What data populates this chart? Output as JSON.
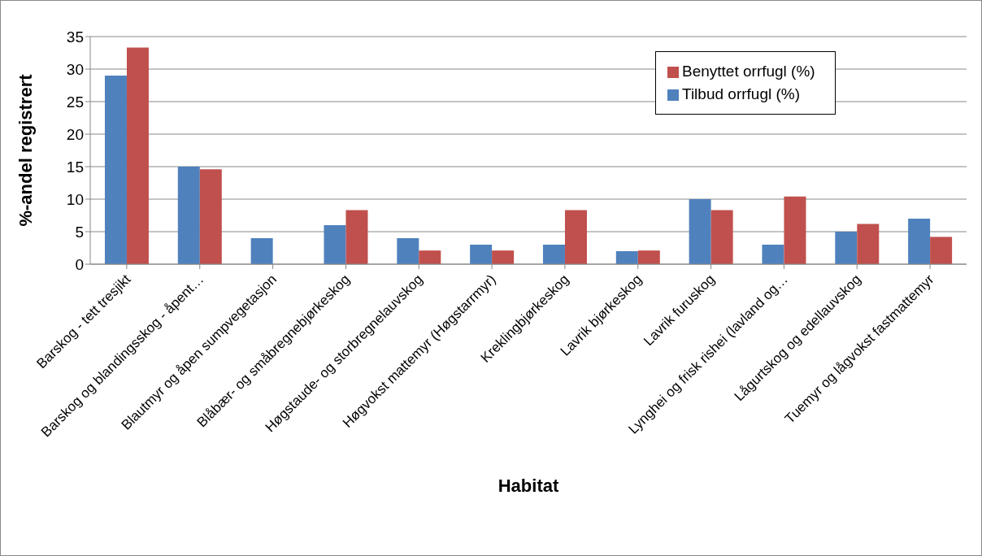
{
  "chart_data": {
    "type": "bar",
    "xlabel": "Habitat",
    "ylabel": "%-andel registrert",
    "categories": [
      "Barskog - tett tresjikt",
      "Barskog og blandingsskog - åpent…",
      "Blautmyr og åpen sumpvegetasjon",
      "Blåbær- og småbregnebjørkeskog",
      "Høgstaude- og storbregnelauvskog",
      "Høgvokst mattemyr (Høgstarrmyr)",
      "Kreklingbjørkeskog",
      "Lavrik bjørkeskog",
      "Lavrik furuskog",
      "Lynghei og frisk rishei (lavland og…",
      "Lågurtskog og edellauvskog",
      "Tuemyr og lågvokst fastmattemyr"
    ],
    "series": [
      {
        "name": "Tilbud orrfugl (%)",
        "color": "#4f81bd",
        "values": [
          29,
          15,
          4,
          6,
          4,
          3,
          3,
          2,
          10,
          3,
          5,
          7
        ]
      },
      {
        "name": "Benyttet orrfugl (%)",
        "color": "#c0504d",
        "values": [
          33.3,
          14.6,
          0,
          8.3,
          2.1,
          2.1,
          8.3,
          2.1,
          8.3,
          10.4,
          6.2,
          4.2
        ]
      }
    ],
    "ylim": [
      0,
      35
    ],
    "yticks": [
      0,
      5,
      10,
      15,
      20,
      25,
      30,
      35
    ],
    "grid": "y",
    "legend": "top right"
  }
}
